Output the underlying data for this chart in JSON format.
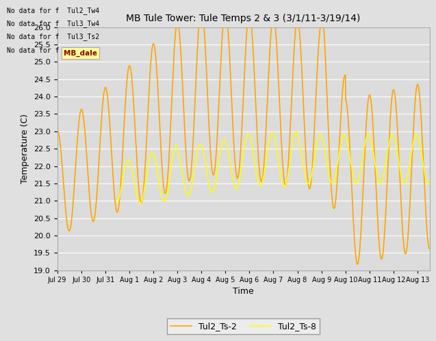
{
  "title": "MB Tule Tower: Tule Temps 2 & 3 (3/1/11-3/19/14)",
  "xlabel": "Time",
  "ylabel": "Temperature (C)",
  "ylim": [
    19.0,
    26.0
  ],
  "yticks": [
    19.0,
    19.5,
    20.0,
    20.5,
    21.0,
    21.5,
    22.0,
    22.5,
    23.0,
    23.5,
    24.0,
    24.5,
    25.0,
    25.5,
    26.0
  ],
  "line1_color": "#FFA500",
  "line2_color": "#FFFF00",
  "line1_label": "Tul2_Ts-2",
  "line2_label": "Tul2_Ts-8",
  "line_width": 1.2,
  "fig_bg": "#E0E0E0",
  "plot_bg": "#DCDCDC",
  "grid_color": "#FFFFFF",
  "num_days": 15.5,
  "xtick_labels": [
    "Jul 29",
    "Jul 30",
    "Jul 31",
    "Aug 1",
    "Aug 2",
    "Aug 3",
    "Aug 4",
    "Aug 5",
    "Aug 6",
    "Aug 7",
    "Aug 8",
    "Aug 9",
    "Aug 10",
    "Aug 11",
    "Aug 12",
    "Aug 13"
  ],
  "no_data_texts": [
    "No data for f  Tul2_Tw4",
    "No data for f  Tul3_Tw4",
    "No data for f  Tul3_Ts2",
    "No data for f  LMB_dale"
  ],
  "tooltip_text": "MB_dale",
  "title_fontsize": 10,
  "axis_label_fontsize": 9,
  "tick_fontsize": 8,
  "xtick_fontsize": 7
}
